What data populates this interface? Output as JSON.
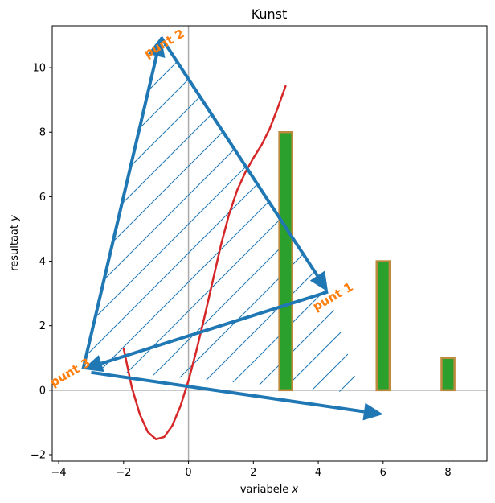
{
  "chart_data": {
    "type": "bar",
    "title": "Kunst",
    "xlabel": "variabele",
    "xlabel_var": "x",
    "ylabel": "resultaat",
    "ylabel_var": "y",
    "xlim": [
      -4.2,
      9.2
    ],
    "ylim": [
      -2.2,
      11.3
    ],
    "x_ticks": [
      -4,
      -2,
      0,
      2,
      4,
      6,
      8
    ],
    "y_ticks": [
      -2,
      0,
      2,
      4,
      6,
      8,
      10
    ],
    "grid": false,
    "reference_lines": {
      "x": 0,
      "y": 0,
      "color": "#aaaaaa"
    },
    "bars": {
      "x": [
        3,
        6,
        8
      ],
      "values": [
        8,
        4,
        1
      ],
      "width": 0.4,
      "fill_color": "#2ca02c",
      "edge_color": "#c08a3e"
    },
    "curve": {
      "color": "#d62728",
      "x_start": -2,
      "x_end": 3,
      "points": [
        [
          -2.0,
          1.3
        ],
        [
          -1.75,
          0.1
        ],
        [
          -1.5,
          -0.75
        ],
        [
          -1.25,
          -1.3
        ],
        [
          -1.0,
          -1.52
        ],
        [
          -0.75,
          -1.45
        ],
        [
          -0.5,
          -1.1
        ],
        [
          -0.25,
          -0.5
        ],
        [
          0.0,
          0.3
        ],
        [
          0.25,
          1.25
        ],
        [
          0.5,
          2.3
        ],
        [
          0.75,
          3.4
        ],
        [
          1.0,
          4.5
        ],
        [
          1.25,
          5.45
        ],
        [
          1.5,
          6.2
        ],
        [
          1.75,
          6.75
        ],
        [
          2.0,
          7.2
        ],
        [
          2.25,
          7.6
        ],
        [
          2.5,
          8.1
        ],
        [
          2.75,
          8.75
        ],
        [
          3.0,
          9.45
        ]
      ]
    },
    "triangle": {
      "color": "#1f77b4",
      "vertices": [
        [
          4.3,
          3.05
        ],
        [
          -0.85,
          10.95
        ],
        [
          -3.25,
          0.65
        ]
      ],
      "hatch": "/",
      "hatch_extends_to": [
        5.3,
        -0.1
      ]
    },
    "arrow": {
      "color": "#1f77b4",
      "from": [
        -3.0,
        0.55
      ],
      "to": [
        6.0,
        -0.75
      ]
    },
    "annotations": [
      {
        "text": "punt 1",
        "x": 4.45,
        "y": 2.9,
        "rotation": -30
      },
      {
        "text": "punt 2",
        "x": -0.75,
        "y": 10.75,
        "rotation": -30
      },
      {
        "text": "punt 3",
        "x": -3.65,
        "y": 0.55,
        "rotation": -30
      }
    ],
    "annotation_color": "#ff7f0e"
  }
}
